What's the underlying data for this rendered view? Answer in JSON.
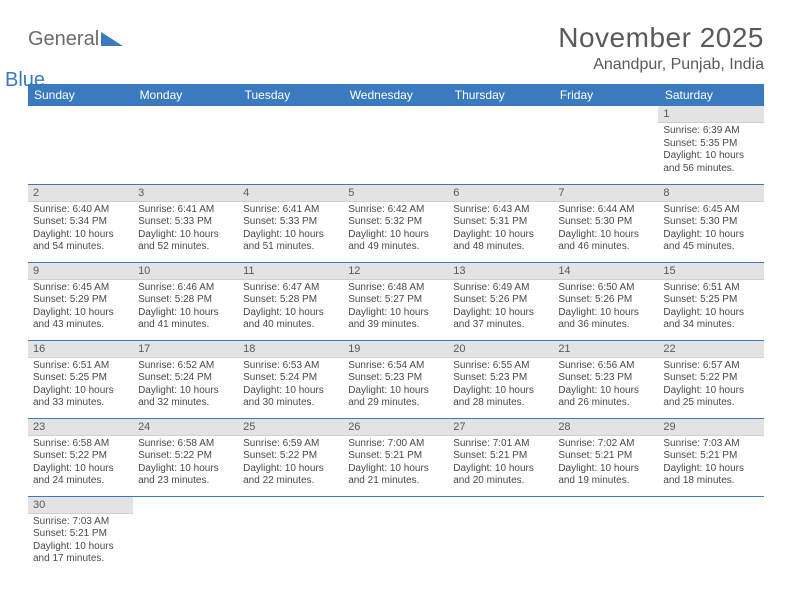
{
  "logo": {
    "part1": "General",
    "part2": "Blue"
  },
  "title": "November 2025",
  "subtitle": "Anandpur, Punjab, India",
  "colors": {
    "header_bg": "#3a7bbf",
    "header_text": "#ffffff",
    "daynum_bg": "#e3e3e3",
    "cell_border": "#3a7bbf",
    "text": "#4a4a4a",
    "title_text": "#5a5a5a"
  },
  "weekdays": [
    "Sunday",
    "Monday",
    "Tuesday",
    "Wednesday",
    "Thursday",
    "Friday",
    "Saturday"
  ],
  "first_weekday_index": 6,
  "days": [
    {
      "n": 1,
      "sunrise": "6:39 AM",
      "sunset": "5:35 PM",
      "daylight": "10 hours and 56 minutes."
    },
    {
      "n": 2,
      "sunrise": "6:40 AM",
      "sunset": "5:34 PM",
      "daylight": "10 hours and 54 minutes."
    },
    {
      "n": 3,
      "sunrise": "6:41 AM",
      "sunset": "5:33 PM",
      "daylight": "10 hours and 52 minutes."
    },
    {
      "n": 4,
      "sunrise": "6:41 AM",
      "sunset": "5:33 PM",
      "daylight": "10 hours and 51 minutes."
    },
    {
      "n": 5,
      "sunrise": "6:42 AM",
      "sunset": "5:32 PM",
      "daylight": "10 hours and 49 minutes."
    },
    {
      "n": 6,
      "sunrise": "6:43 AM",
      "sunset": "5:31 PM",
      "daylight": "10 hours and 48 minutes."
    },
    {
      "n": 7,
      "sunrise": "6:44 AM",
      "sunset": "5:30 PM",
      "daylight": "10 hours and 46 minutes."
    },
    {
      "n": 8,
      "sunrise": "6:45 AM",
      "sunset": "5:30 PM",
      "daylight": "10 hours and 45 minutes."
    },
    {
      "n": 9,
      "sunrise": "6:45 AM",
      "sunset": "5:29 PM",
      "daylight": "10 hours and 43 minutes."
    },
    {
      "n": 10,
      "sunrise": "6:46 AM",
      "sunset": "5:28 PM",
      "daylight": "10 hours and 41 minutes."
    },
    {
      "n": 11,
      "sunrise": "6:47 AM",
      "sunset": "5:28 PM",
      "daylight": "10 hours and 40 minutes."
    },
    {
      "n": 12,
      "sunrise": "6:48 AM",
      "sunset": "5:27 PM",
      "daylight": "10 hours and 39 minutes."
    },
    {
      "n": 13,
      "sunrise": "6:49 AM",
      "sunset": "5:26 PM",
      "daylight": "10 hours and 37 minutes."
    },
    {
      "n": 14,
      "sunrise": "6:50 AM",
      "sunset": "5:26 PM",
      "daylight": "10 hours and 36 minutes."
    },
    {
      "n": 15,
      "sunrise": "6:51 AM",
      "sunset": "5:25 PM",
      "daylight": "10 hours and 34 minutes."
    },
    {
      "n": 16,
      "sunrise": "6:51 AM",
      "sunset": "5:25 PM",
      "daylight": "10 hours and 33 minutes."
    },
    {
      "n": 17,
      "sunrise": "6:52 AM",
      "sunset": "5:24 PM",
      "daylight": "10 hours and 32 minutes."
    },
    {
      "n": 18,
      "sunrise": "6:53 AM",
      "sunset": "5:24 PM",
      "daylight": "10 hours and 30 minutes."
    },
    {
      "n": 19,
      "sunrise": "6:54 AM",
      "sunset": "5:23 PM",
      "daylight": "10 hours and 29 minutes."
    },
    {
      "n": 20,
      "sunrise": "6:55 AM",
      "sunset": "5:23 PM",
      "daylight": "10 hours and 28 minutes."
    },
    {
      "n": 21,
      "sunrise": "6:56 AM",
      "sunset": "5:23 PM",
      "daylight": "10 hours and 26 minutes."
    },
    {
      "n": 22,
      "sunrise": "6:57 AM",
      "sunset": "5:22 PM",
      "daylight": "10 hours and 25 minutes."
    },
    {
      "n": 23,
      "sunrise": "6:58 AM",
      "sunset": "5:22 PM",
      "daylight": "10 hours and 24 minutes."
    },
    {
      "n": 24,
      "sunrise": "6:58 AM",
      "sunset": "5:22 PM",
      "daylight": "10 hours and 23 minutes."
    },
    {
      "n": 25,
      "sunrise": "6:59 AM",
      "sunset": "5:22 PM",
      "daylight": "10 hours and 22 minutes."
    },
    {
      "n": 26,
      "sunrise": "7:00 AM",
      "sunset": "5:21 PM",
      "daylight": "10 hours and 21 minutes."
    },
    {
      "n": 27,
      "sunrise": "7:01 AM",
      "sunset": "5:21 PM",
      "daylight": "10 hours and 20 minutes."
    },
    {
      "n": 28,
      "sunrise": "7:02 AM",
      "sunset": "5:21 PM",
      "daylight": "10 hours and 19 minutes."
    },
    {
      "n": 29,
      "sunrise": "7:03 AM",
      "sunset": "5:21 PM",
      "daylight": "10 hours and 18 minutes."
    },
    {
      "n": 30,
      "sunrise": "7:03 AM",
      "sunset": "5:21 PM",
      "daylight": "10 hours and 17 minutes."
    }
  ],
  "labels": {
    "sunrise": "Sunrise:",
    "sunset": "Sunset:",
    "daylight": "Daylight:"
  }
}
